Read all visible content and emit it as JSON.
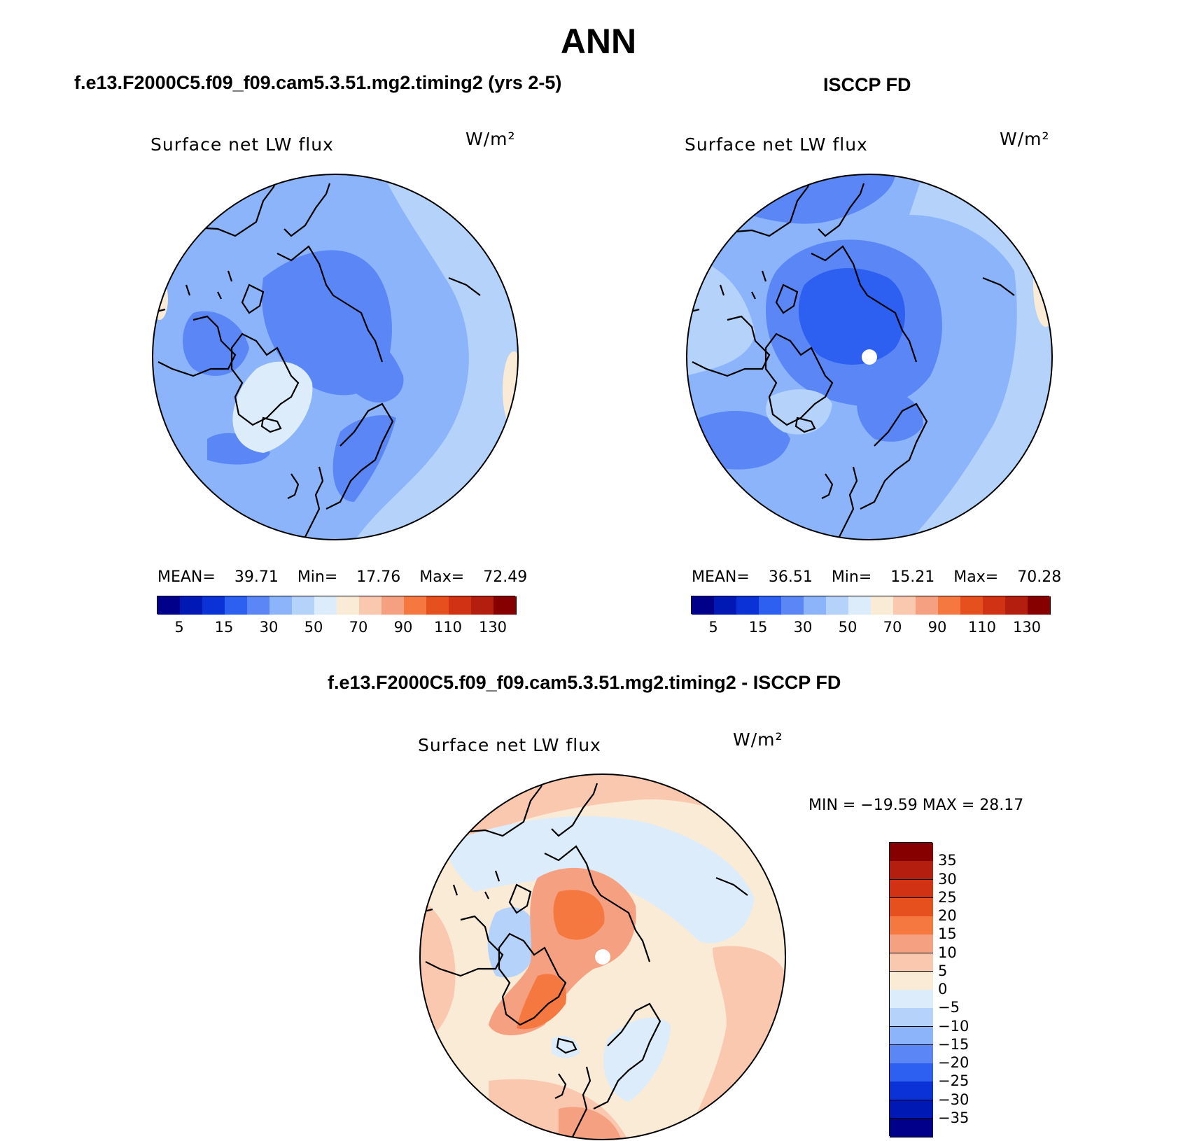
{
  "main_title": "ANN",
  "panels": [
    {
      "header": "f.e13.F2000C5.f09_f09.cam5.3.51.mg2.timing2 (yrs 2-5)",
      "variable": "Surface net LW flux",
      "units": "W/m²",
      "stats": {
        "mean_label": "MEAN=",
        "mean": "39.71",
        "min_label": "Min=",
        "min": "17.76",
        "max_label": "Max=",
        "max": "72.49"
      },
      "colorbar": {
        "labels": [
          "5",
          "15",
          "30",
          "50",
          "70",
          "90",
          "110",
          "130"
        ]
      }
    },
    {
      "header": "ISCCP FD",
      "variable": "Surface net LW flux",
      "units": "W/m²",
      "stats": {
        "mean_label": "MEAN=",
        "mean": "36.51",
        "min_label": "Min=",
        "min": "15.21",
        "max_label": "Max=",
        "max": "70.28"
      },
      "colorbar": {
        "labels": [
          "5",
          "15",
          "30",
          "50",
          "70",
          "90",
          "110",
          "130"
        ]
      }
    },
    {
      "header": "f.e13.F2000C5.f09_f09.cam5.3.51.mg2.timing2 - ISCCP FD",
      "variable": "Surface net LW flux",
      "units": "W/m²",
      "stats": {
        "text": "MIN = −19.59 MAX =  28.17"
      },
      "colorbar": {
        "labels": [
          "35",
          "30",
          "25",
          "20",
          "15",
          "10",
          "5",
          "0",
          "−5",
          "−10",
          "−15",
          "−20",
          "−25",
          "−30",
          "−35"
        ]
      }
    }
  ],
  "palette_seq": [
    "#00008b",
    "#0019b4",
    "#0a32d7",
    "#2d5ff0",
    "#5a87f5",
    "#8cb4fa",
    "#b4d2fa",
    "#dcecfa",
    "#faebd7",
    "#fac8af",
    "#f5a080",
    "#f57841",
    "#e6501e",
    "#d23214",
    "#b41e0f",
    "#870000"
  ],
  "palette_diff": [
    "#870000",
    "#b41e0f",
    "#d23214",
    "#e6501e",
    "#f57841",
    "#f5a080",
    "#fac8af",
    "#faebd7",
    "#dcecfa",
    "#b4d2fa",
    "#8cb4fa",
    "#5a87f5",
    "#2d5ff0",
    "#0a32d7",
    "#0019b4",
    "#00008b"
  ],
  "map_colors": {
    "model": {
      "base": "#8cb4fa",
      "outer": "#b4d2fa",
      "dark": "#5a87f5",
      "pale": "#dcecfa",
      "warm": "#faebd7"
    },
    "obs": {
      "base": "#8cb4fa",
      "outer": "#b4d2fa",
      "dark": "#5a87f5",
      "core": "#2d5ff0",
      "warm": "#faebd7"
    },
    "diff": {
      "base": "#faebd7",
      "ring": "#fac8af",
      "blue": "#dcecfa",
      "blue2": "#b4d2fa",
      "red": "#f5a080",
      "red2": "#f57841"
    }
  }
}
